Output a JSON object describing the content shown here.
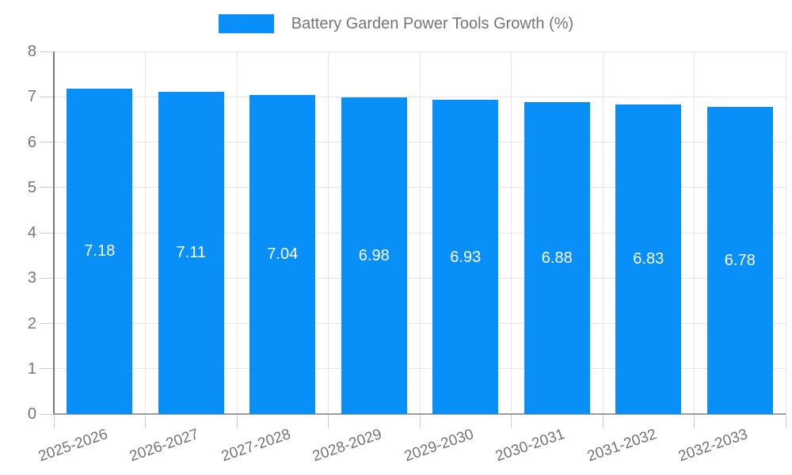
{
  "chart_data": {
    "type": "bar",
    "title": "Battery Garden Power Tools Growth (%)",
    "categories": [
      "2025-2026",
      "2026-2027",
      "2027-2028",
      "2028-2029",
      "2029-2030",
      "2030-2031",
      "2031-2032",
      "2032-2033"
    ],
    "values": [
      7.18,
      7.11,
      7.04,
      6.98,
      6.93,
      6.88,
      6.83,
      6.78
    ],
    "value_label_decimals": 2,
    "xlabel": "",
    "ylabel": "",
    "ylim": [
      0,
      8
    ],
    "yticks": [
      0,
      1,
      2,
      3,
      4,
      5,
      6,
      7,
      8
    ],
    "grid": true,
    "legend_position": "top-center",
    "colors": {
      "bar": "#0990f8",
      "grid": "#e6e6e6",
      "tick": "#cccccc",
      "y_axis": "#787878",
      "x_axis": "#9e9e9e",
      "axis_text": "#757575",
      "value_text": "#ffffff",
      "background": "#ffffff"
    }
  }
}
